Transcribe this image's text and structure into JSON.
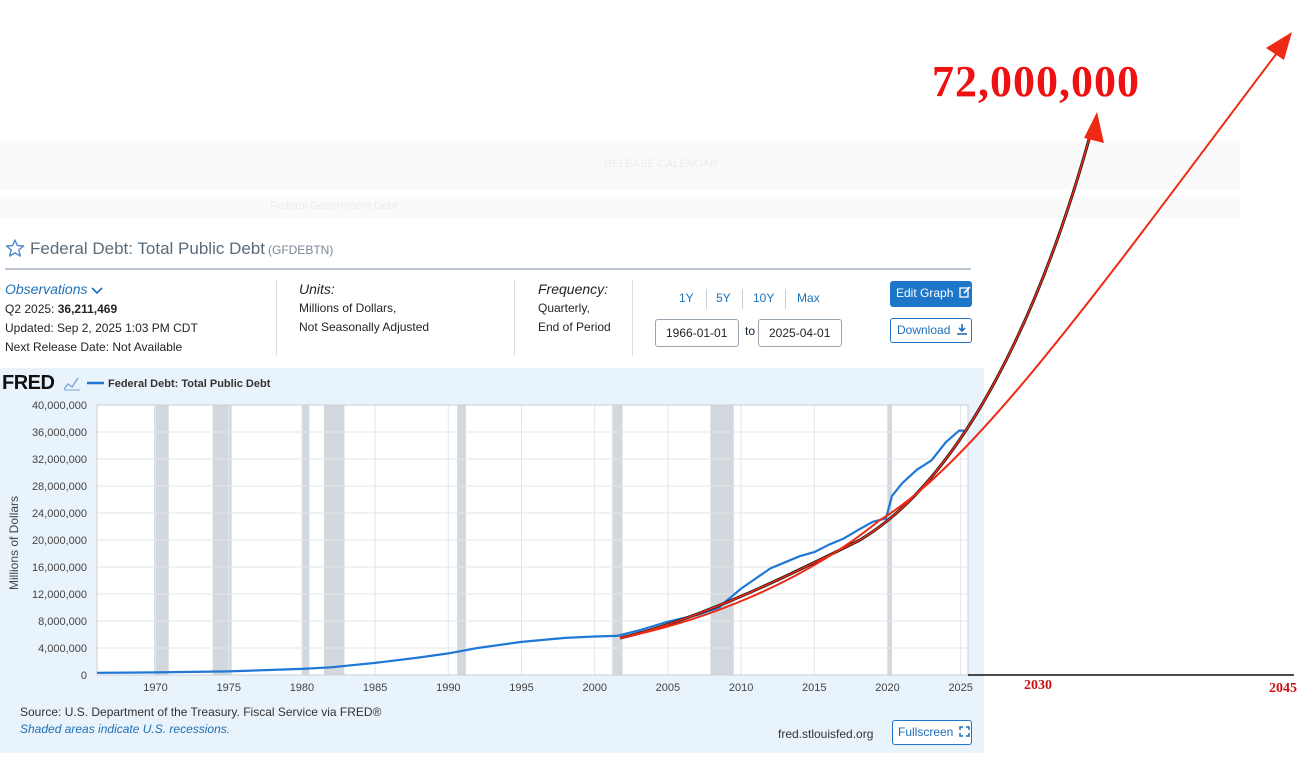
{
  "background_faded": {
    "release_calendar": "RELEASE CALENDAR",
    "breadcrumb": "Federal Government Debt"
  },
  "series": {
    "title": "Federal Debt: Total Public Debt",
    "id": "(GFDEBTN)"
  },
  "observations": {
    "label": "Observations",
    "period_label": "Q2 2025:",
    "value": "36,211,469",
    "updated": "Updated: Sep 2, 2025 1:03 PM CDT",
    "next_release": "Next Release Date: Not Available"
  },
  "units": {
    "label": "Units:",
    "line1": "Millions of Dollars,",
    "line2": "Not Seasonally Adjusted"
  },
  "frequency": {
    "label": "Frequency:",
    "line1": "Quarterly,",
    "line2": "End of Period"
  },
  "range": {
    "buttons": [
      "1Y",
      "5Y",
      "10Y",
      "Max"
    ],
    "start": "1966-01-01",
    "to_label": "to",
    "end": "2025-04-01"
  },
  "actions": {
    "edit_graph": "Edit Graph",
    "download": "Download",
    "fullscreen": "Fullscreen"
  },
  "footer": {
    "source": "Source: U.S. Department of the Treasury. Fiscal Service via FRED®",
    "shaded_note": "Shaded areas indicate U.S. recessions.",
    "url": "fred.stlouisfed.org"
  },
  "logo": "FRED",
  "annotations": {
    "big_value": "72,000,000",
    "year_2030": "2030",
    "year_2045": "2045"
  },
  "colors": {
    "series": "#1f77d6",
    "fit_red": "#e8261a",
    "fit_black": "#1a1a1a",
    "recession": "#d3d8de",
    "arrow": "#ee2a14"
  },
  "icons": [
    "star-icon",
    "chevron-down-icon",
    "chart-icon",
    "edit-icon",
    "download-icon",
    "fullscreen-icon"
  ],
  "chart_data": {
    "type": "line",
    "legend": [
      "Federal Debt: Total Public Debt"
    ],
    "ylabel": "Millions of Dollars",
    "xlabel": "",
    "ylim": [
      0,
      40000000
    ],
    "xlim": [
      1966,
      2025.5
    ],
    "grid": true,
    "y_ticks": [
      "0",
      "4,000,000",
      "8,000,000",
      "12,000,000",
      "16,000,000",
      "20,000,000",
      "24,000,000",
      "28,000,000",
      "32,000,000",
      "36,000,000",
      "40,000,000"
    ],
    "x_ticks": [
      "1970",
      "1975",
      "1980",
      "1985",
      "1990",
      "1995",
      "2000",
      "2005",
      "2010",
      "2015",
      "2020",
      "2025"
    ],
    "recessions": [
      [
        1969.9,
        1970.9
      ],
      [
        1973.9,
        1975.2
      ],
      [
        1980.0,
        1980.5
      ],
      [
        1981.5,
        1982.9
      ],
      [
        1990.6,
        1991.2
      ],
      [
        2001.2,
        2001.9
      ],
      [
        2007.9,
        2009.5
      ],
      [
        2020.0,
        2020.3
      ]
    ],
    "series": [
      {
        "name": "Federal Debt: Total Public Debt",
        "points": [
          [
            1966,
            320000
          ],
          [
            1970,
            380000
          ],
          [
            1975,
            540000
          ],
          [
            1980,
            900000
          ],
          [
            1982,
            1140000
          ],
          [
            1985,
            1800000
          ],
          [
            1988,
            2600000
          ],
          [
            1990,
            3200000
          ],
          [
            1992,
            4000000
          ],
          [
            1995,
            4900000
          ],
          [
            1998,
            5500000
          ],
          [
            2000,
            5700000
          ],
          [
            2001.5,
            5800000
          ],
          [
            2003,
            6600000
          ],
          [
            2005,
            7900000
          ],
          [
            2007,
            8900000
          ],
          [
            2008.5,
            10000000
          ],
          [
            2009,
            11000000
          ],
          [
            2010,
            12800000
          ],
          [
            2011,
            14300000
          ],
          [
            2012,
            15800000
          ],
          [
            2013,
            16700000
          ],
          [
            2014,
            17600000
          ],
          [
            2015,
            18200000
          ],
          [
            2016,
            19300000
          ],
          [
            2017,
            20200000
          ],
          [
            2018,
            21500000
          ],
          [
            2019,
            22700000
          ],
          [
            2019.9,
            23200000
          ],
          [
            2020.3,
            26500000
          ],
          [
            2021,
            28400000
          ],
          [
            2022,
            30400000
          ],
          [
            2023,
            31800000
          ],
          [
            2024,
            34500000
          ],
          [
            2024.9,
            36200000
          ],
          [
            2025.25,
            36211469
          ]
        ]
      }
    ]
  }
}
